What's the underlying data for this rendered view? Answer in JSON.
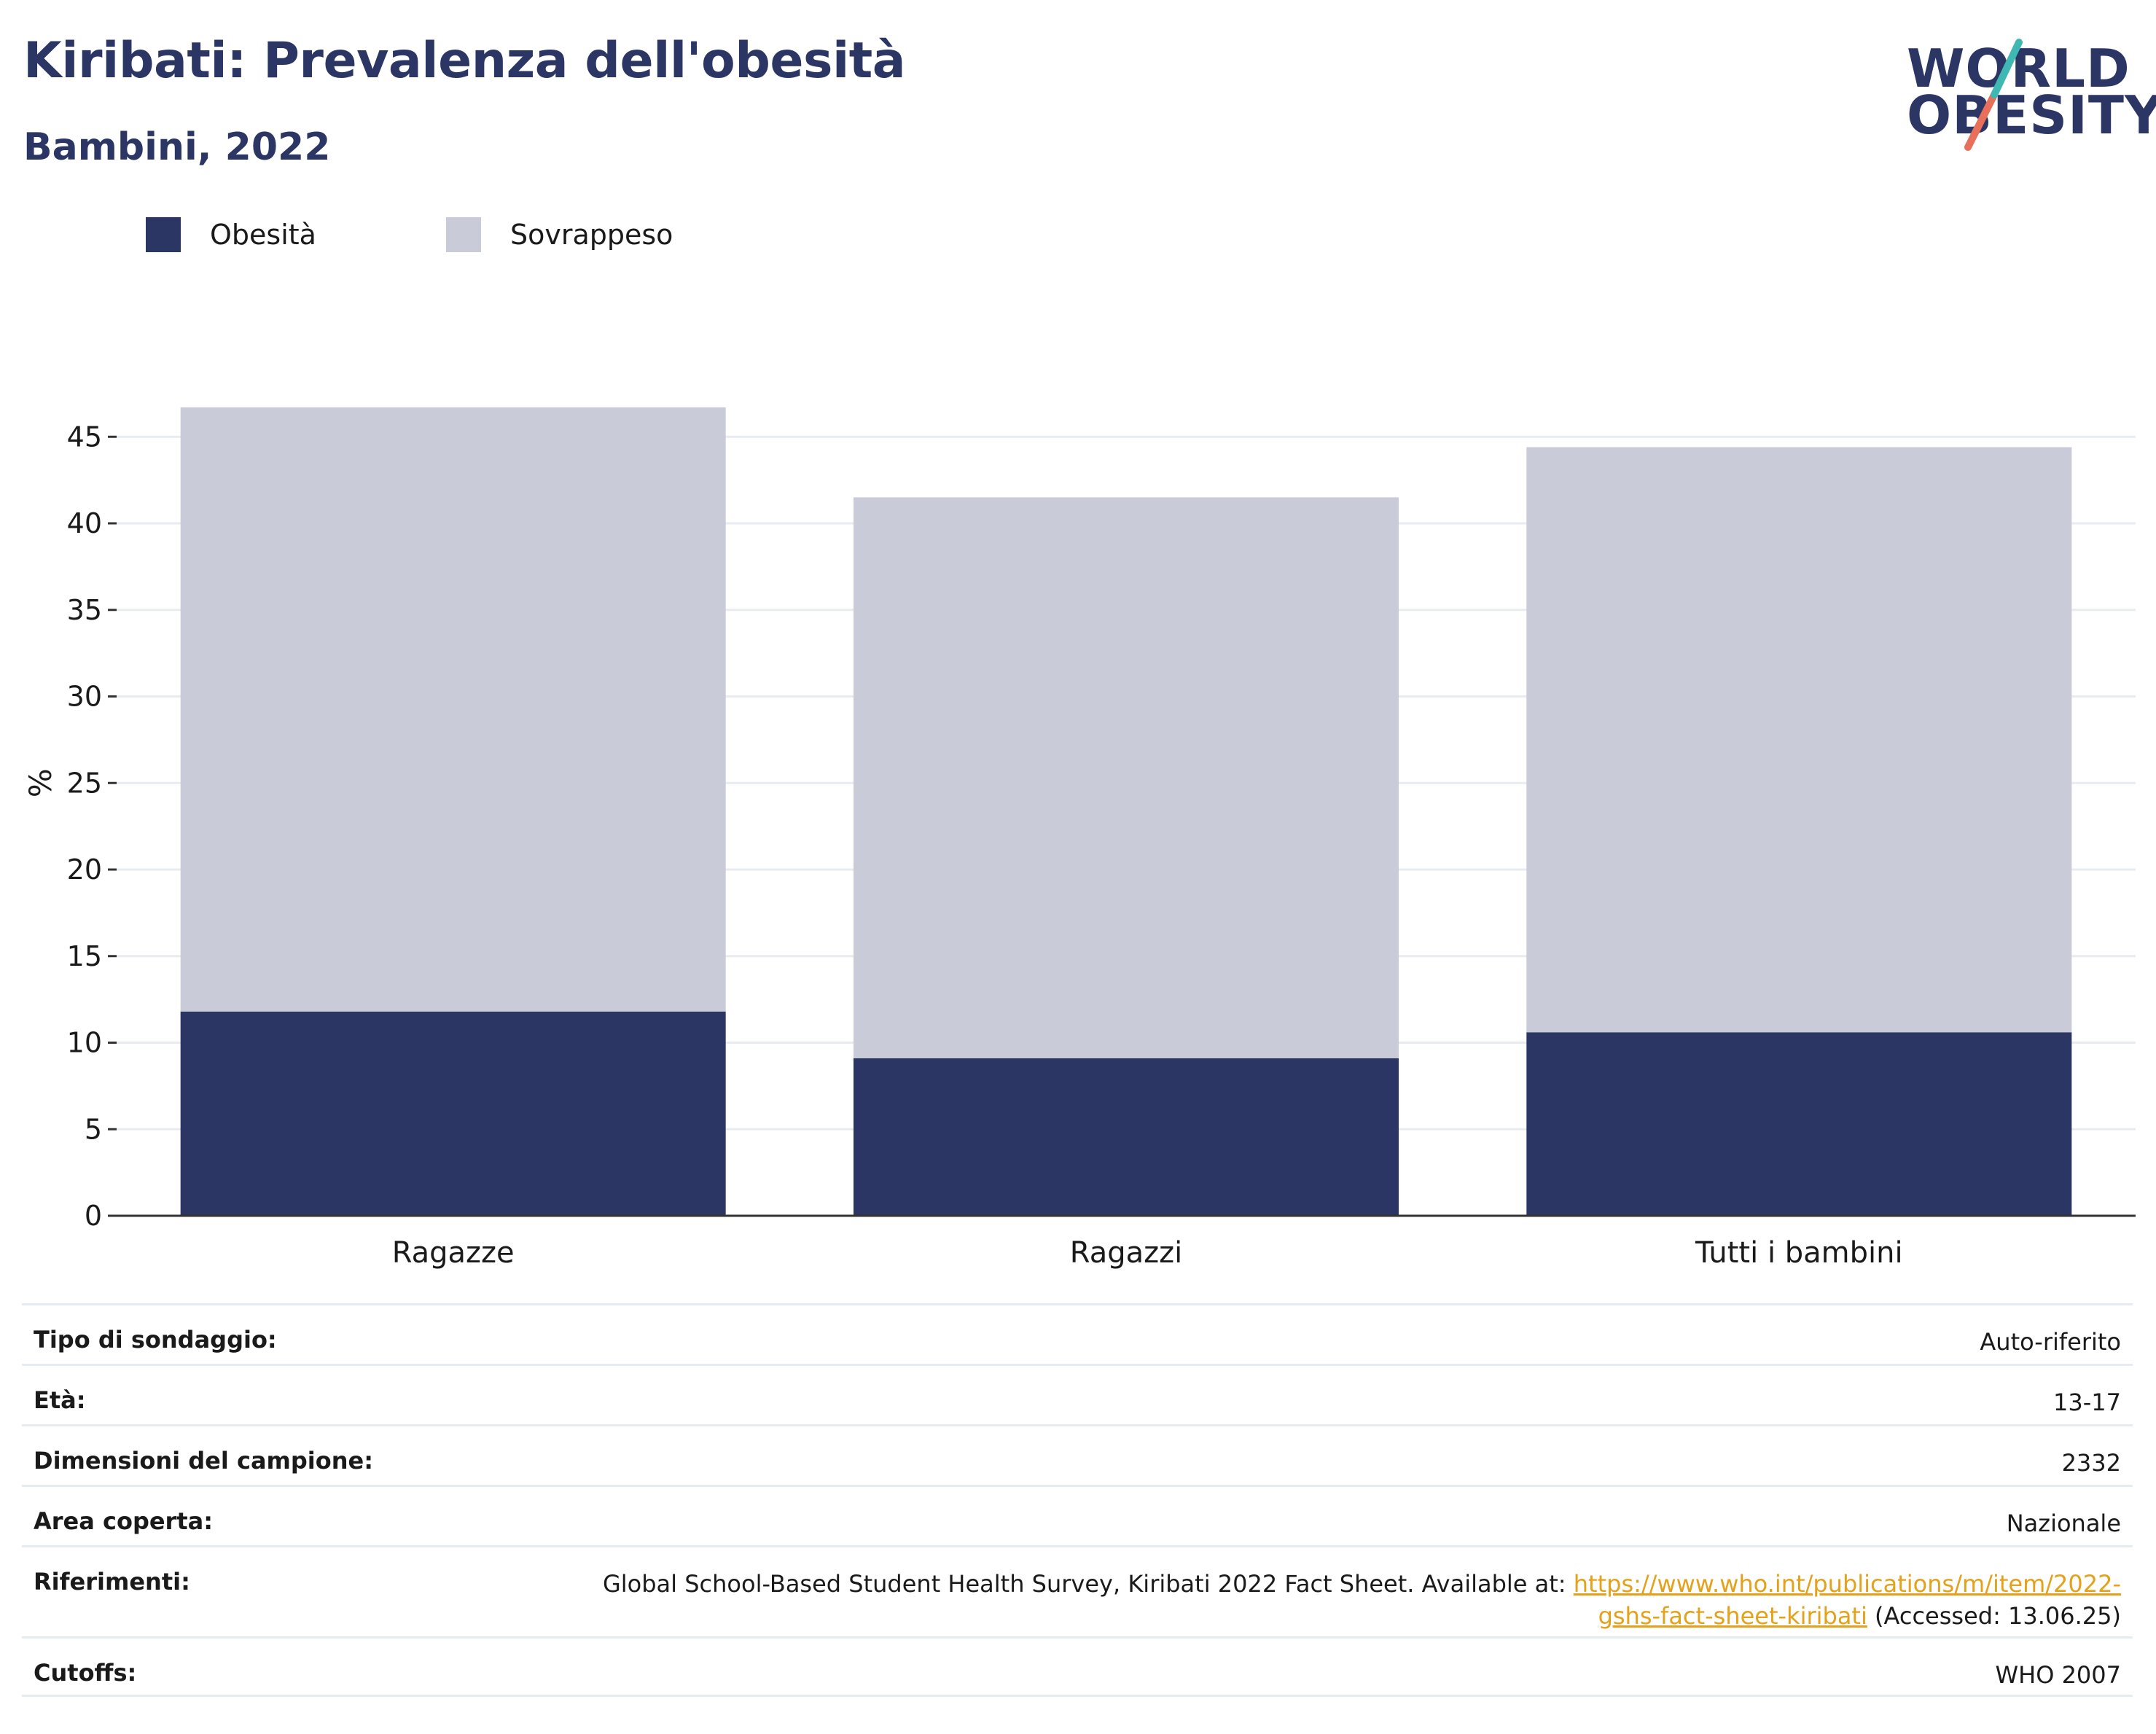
{
  "header": {
    "title": "Kiribati: Prevalenza dell'obesità",
    "subtitle": "Bambini, 2022"
  },
  "logo": {
    "line1": "WORLD",
    "line2": "OBESITY",
    "colors": {
      "text": "#2b3664",
      "slash_top": "#3fb8b3",
      "slash_bottom": "#e8705a"
    }
  },
  "colors": {
    "obesity": "#2b3664",
    "overweight": "#c9ccd8",
    "grid": "#e8ebf0",
    "axis": "#333333",
    "link": "#e3a21a"
  },
  "chart_data": {
    "type": "bar",
    "stacked": true,
    "categories": [
      "Ragazze",
      "Ragazzi",
      "Tutti i bambini"
    ],
    "series": [
      {
        "name": "Obesità",
        "values": [
          11.8,
          9.1,
          10.6
        ]
      },
      {
        "name": "Sovrappeso",
        "values": [
          34.9,
          32.4,
          33.8
        ]
      }
    ],
    "ylabel": "%",
    "ylim": [
      0,
      47
    ],
    "yticks": [
      0,
      5,
      10,
      15,
      20,
      25,
      30,
      35,
      40,
      45
    ],
    "grid": true,
    "legend_position": "top-left"
  },
  "info_table": [
    {
      "label": "Tipo di sondaggio:",
      "value": "Auto-riferito"
    },
    {
      "label": "Età:",
      "value": "13-17"
    },
    {
      "label": "Dimensioni del campione:",
      "value": "2332"
    },
    {
      "label": "Area coperta:",
      "value": "Nazionale"
    },
    {
      "label": "Riferimenti:",
      "value_prefix": "Global School-Based Student Health Survey, Kiribati 2022 Fact Sheet. Available at: ",
      "link_part1": "https://www.who.int/publications/m/item/2022-",
      "link_part2": "gshs-fact-sheet-kiribati",
      "value_suffix": " (Accessed: 13.06.25)"
    },
    {
      "label": "Cutoffs:",
      "value": "WHO 2007"
    }
  ]
}
